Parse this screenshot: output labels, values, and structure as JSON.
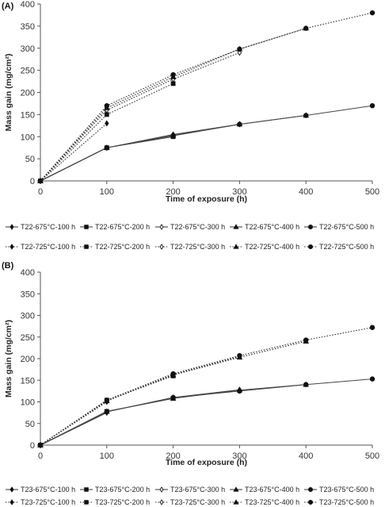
{
  "chart_data": [
    {
      "type": "line",
      "panel_label": "(A)",
      "xlabel": "Time of exposure (h)",
      "ylabel": "Mass gain (mg/cm²)",
      "xlim": [
        0,
        500
      ],
      "ylim": [
        0,
        400
      ],
      "xticks": [
        0,
        100,
        200,
        300,
        400,
        500
      ],
      "yticks": [
        0,
        50,
        100,
        150,
        200,
        250,
        300,
        350,
        400
      ],
      "grid": false,
      "legend_position": "bottom",
      "series": [
        {
          "name": "T22-675°C-100 h",
          "marker": "diamond",
          "fill": "filled",
          "dash": "solid",
          "x": [
            0,
            100
          ],
          "y": [
            0,
            75
          ]
        },
        {
          "name": "T22-675°C-200 h",
          "marker": "square",
          "fill": "filled",
          "dash": "solid",
          "x": [
            0,
            100,
            200
          ],
          "y": [
            0,
            75,
            100
          ]
        },
        {
          "name": "T22-675°C-300 h",
          "marker": "diamond",
          "fill": "open",
          "dash": "solid",
          "x": [
            0,
            100,
            200,
            300
          ],
          "y": [
            0,
            75,
            105,
            128
          ]
        },
        {
          "name": "T22-675°C-400 h",
          "marker": "triangle",
          "fill": "filled",
          "dash": "solid",
          "x": [
            0,
            100,
            200,
            300,
            400
          ],
          "y": [
            0,
            75,
            103,
            128,
            148
          ]
        },
        {
          "name": "T22-675°C-500 h",
          "marker": "circle",
          "fill": "filled",
          "dash": "solid",
          "x": [
            0,
            100,
            200,
            300,
            400,
            500
          ],
          "y": [
            0,
            75,
            102,
            128,
            148,
            170
          ]
        },
        {
          "name": "T22-725°C-100 h",
          "marker": "diamond",
          "fill": "filled",
          "dash": "dotted",
          "x": [
            0,
            100
          ],
          "y": [
            0,
            130
          ]
        },
        {
          "name": "T22-725°C-200 h",
          "marker": "square",
          "fill": "filled",
          "dash": "dotted",
          "x": [
            0,
            100,
            200
          ],
          "y": [
            0,
            150,
            220
          ]
        },
        {
          "name": "T22-725°C-300 h",
          "marker": "diamond",
          "fill": "open",
          "dash": "dotted",
          "x": [
            0,
            100,
            200,
            300
          ],
          "y": [
            0,
            160,
            230,
            290
          ]
        },
        {
          "name": "T22-725°C-400 h",
          "marker": "triangle",
          "fill": "filled",
          "dash": "dotted",
          "x": [
            0,
            100,
            200,
            300,
            400
          ],
          "y": [
            0,
            165,
            235,
            298,
            345
          ]
        },
        {
          "name": "T22-725°C-500 h",
          "marker": "circle",
          "fill": "filled",
          "dash": "dotted",
          "x": [
            0,
            100,
            200,
            300,
            400,
            500
          ],
          "y": [
            0,
            170,
            240,
            298,
            345,
            380
          ]
        }
      ]
    },
    {
      "type": "line",
      "panel_label": "(B)",
      "xlabel": "Time of exposure (h)",
      "ylabel": "Mass gain (mg/cm²)",
      "xlim": [
        0,
        500
      ],
      "ylim": [
        0,
        400
      ],
      "xticks": [
        0,
        100,
        200,
        300,
        400,
        500
      ],
      "yticks": [
        0,
        50,
        100,
        150,
        200,
        250,
        300,
        350,
        400
      ],
      "grid": false,
      "legend_position": "bottom",
      "series": [
        {
          "name": "T23-675°C-100 h",
          "marker": "diamond",
          "fill": "filled",
          "dash": "solid",
          "x": [
            0,
            100
          ],
          "y": [
            0,
            75
          ]
        },
        {
          "name": "T23-675°C-200 h",
          "marker": "square",
          "fill": "filled",
          "dash": "solid",
          "x": [
            0,
            100,
            200
          ],
          "y": [
            0,
            78,
            108
          ]
        },
        {
          "name": "T23-675°C-300 h",
          "marker": "diamond",
          "fill": "open",
          "dash": "solid",
          "x": [
            0,
            100,
            200,
            300
          ],
          "y": [
            0,
            77,
            110,
            128
          ]
        },
        {
          "name": "T23-675°C-400 h",
          "marker": "triangle",
          "fill": "filled",
          "dash": "solid",
          "x": [
            0,
            100,
            200,
            300,
            400
          ],
          "y": [
            0,
            78,
            108,
            127,
            140
          ]
        },
        {
          "name": "T23-675°C-500 h",
          "marker": "circle",
          "fill": "filled",
          "dash": "solid",
          "x": [
            0,
            100,
            200,
            300,
            400,
            500
          ],
          "y": [
            0,
            77,
            110,
            125,
            140,
            153
          ]
        },
        {
          "name": "T23-725°C-100 h",
          "marker": "diamond",
          "fill": "filled",
          "dash": "dotted",
          "x": [
            0,
            100
          ],
          "y": [
            0,
            100
          ]
        },
        {
          "name": "T23-725°C-200 h",
          "marker": "square",
          "fill": "filled",
          "dash": "dotted",
          "x": [
            0,
            100,
            200
          ],
          "y": [
            0,
            104,
            160
          ]
        },
        {
          "name": "T23-725°C-300 h",
          "marker": "diamond",
          "fill": "open",
          "dash": "dotted",
          "x": [
            0,
            100,
            200,
            300
          ],
          "y": [
            0,
            103,
            163,
            205
          ]
        },
        {
          "name": "T23-725°C-400 h",
          "marker": "triangle",
          "fill": "filled",
          "dash": "dotted",
          "x": [
            0,
            100,
            200,
            300,
            400
          ],
          "y": [
            0,
            102,
            162,
            203,
            240
          ]
        },
        {
          "name": "T23-725°C-500 h",
          "marker": "circle",
          "fill": "filled",
          "dash": "dotted",
          "x": [
            0,
            100,
            200,
            300,
            400,
            500
          ],
          "y": [
            0,
            104,
            165,
            207,
            243,
            272
          ]
        }
      ]
    }
  ]
}
